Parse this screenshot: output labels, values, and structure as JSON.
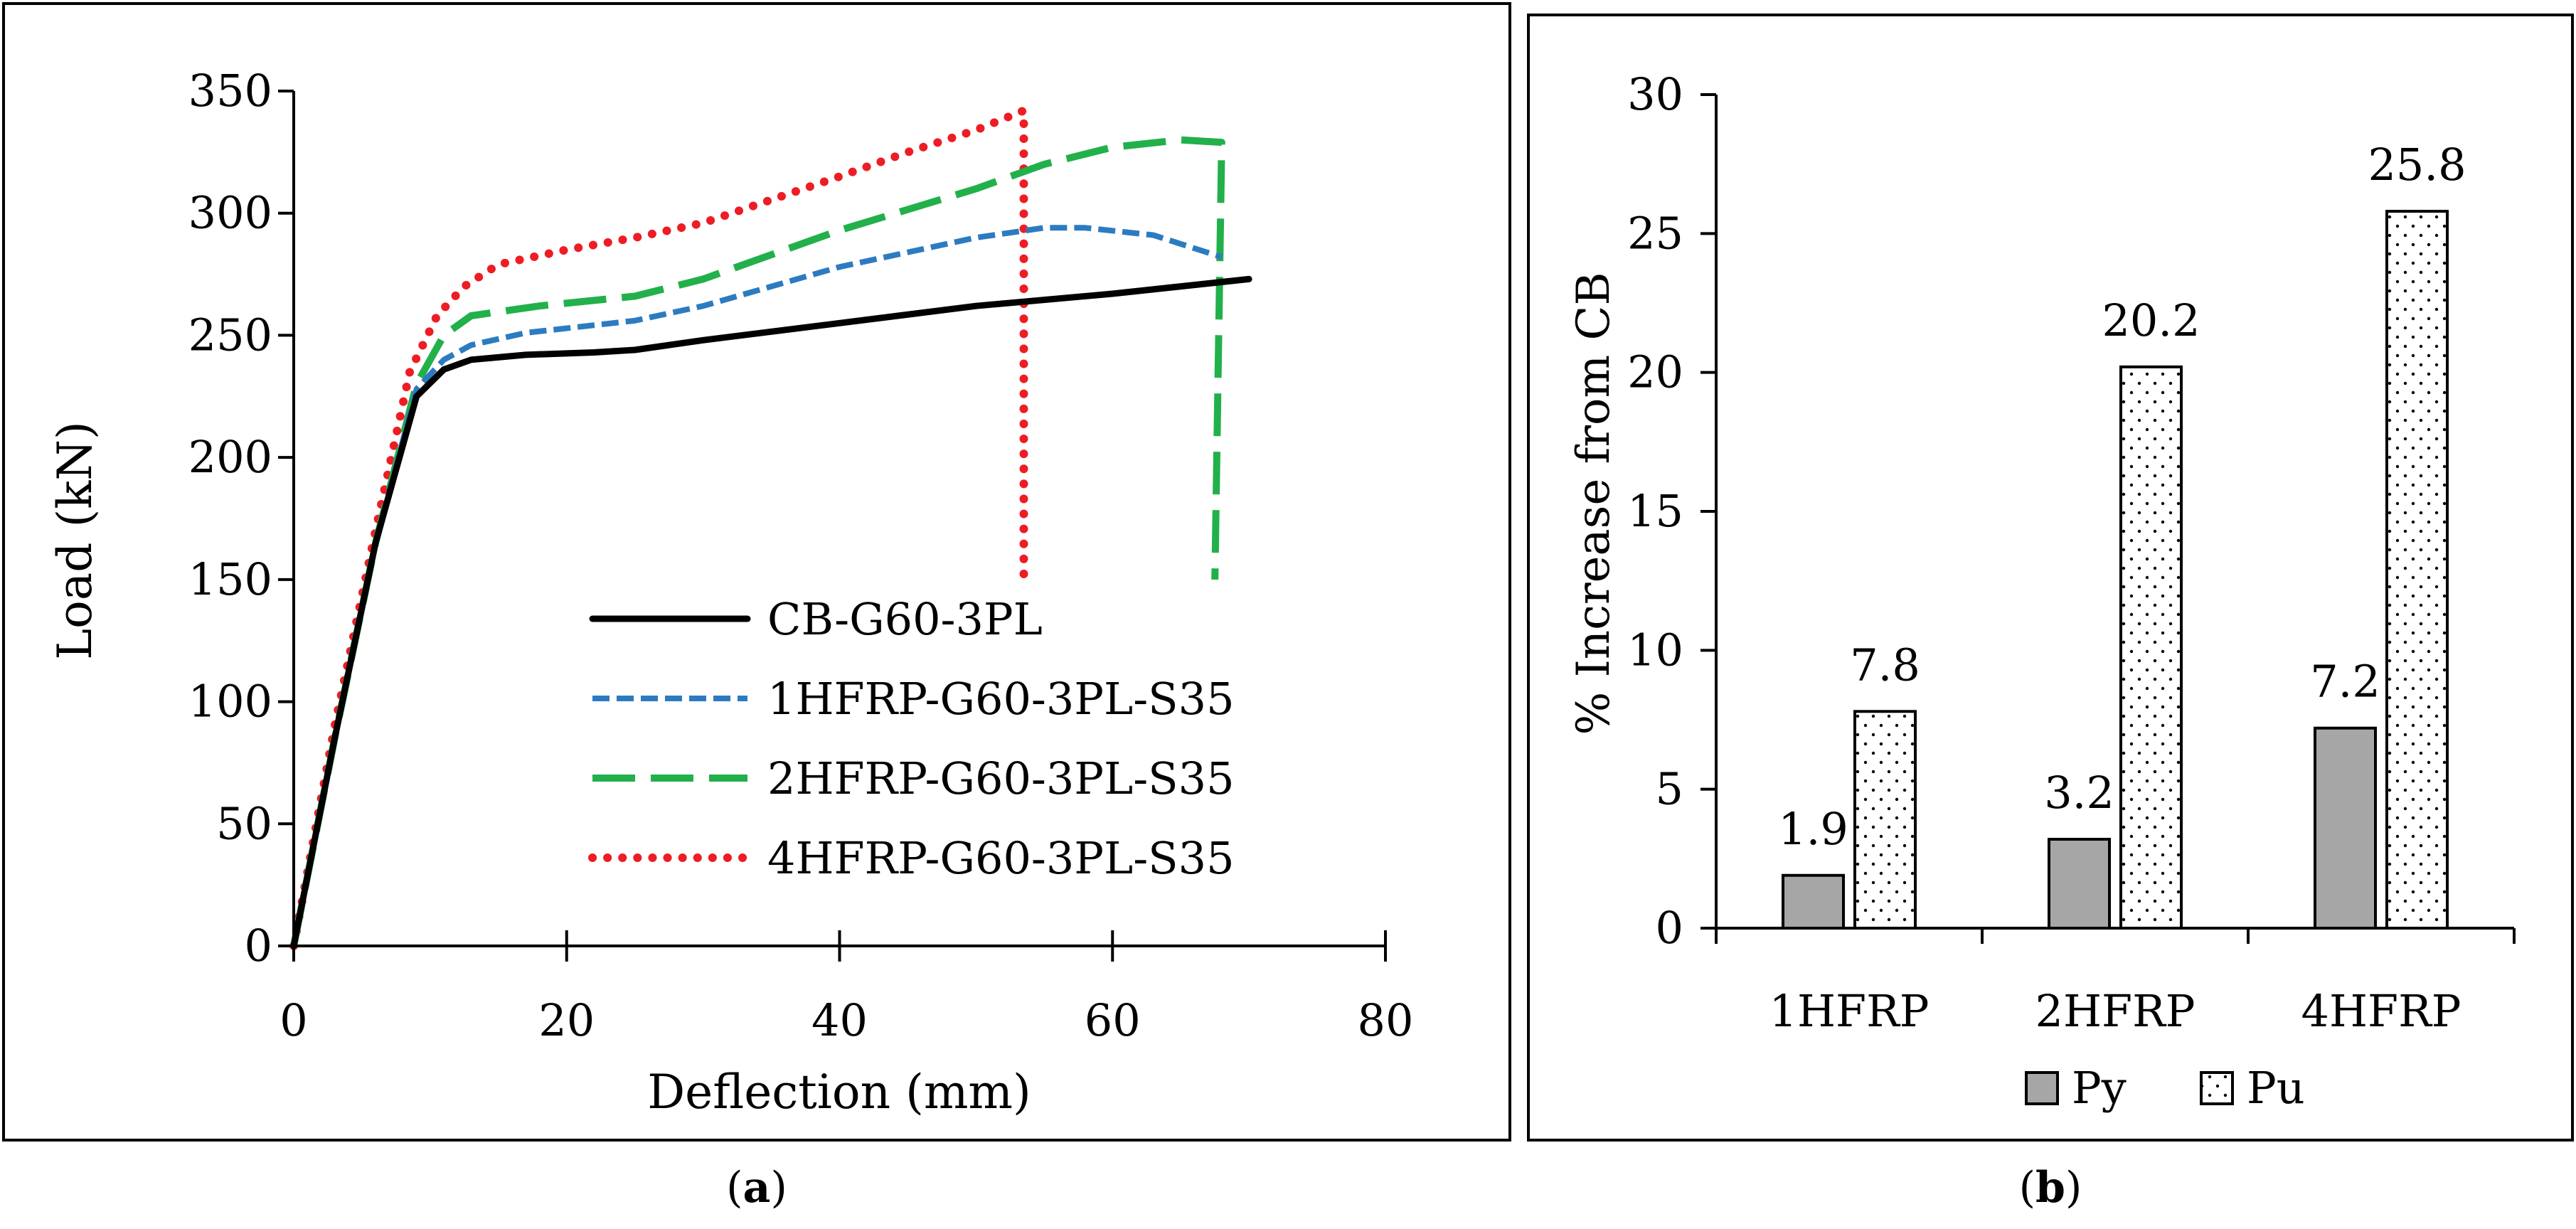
{
  "chart_data": [
    {
      "panel": "a",
      "type": "line",
      "caption_letter": "a",
      "caption_open": "(",
      "caption_close": ")",
      "xlabel": "Deflection (mm)",
      "ylabel": "Load (kN)",
      "xlim": [
        0,
        80
      ],
      "ylim": [
        0,
        350
      ],
      "xticks": [
        0,
        20,
        40,
        60,
        80
      ],
      "yticks": [
        0,
        50,
        100,
        150,
        200,
        250,
        300,
        350
      ],
      "grid": false,
      "legend_position": "lower-right",
      "series": [
        {
          "name": "CB-G60-3PL",
          "color": "#000000",
          "style": "solid",
          "points": [
            [
              0,
              0
            ],
            [
              3,
              85
            ],
            [
              6,
              165
            ],
            [
              9,
              225
            ],
            [
              11,
              236
            ],
            [
              13,
              240
            ],
            [
              17,
              242
            ],
            [
              22,
              243
            ],
            [
              25,
              244
            ],
            [
              30,
              248
            ],
            [
              40,
              255
            ],
            [
              50,
              262
            ],
            [
              60,
              267
            ],
            [
              70,
              273
            ]
          ]
        },
        {
          "name": "1HFRP-G60-3PL-S35",
          "color": "#2c7bc0",
          "style": "short-dash",
          "points": [
            [
              0,
              0
            ],
            [
              3,
              85
            ],
            [
              6,
              165
            ],
            [
              9,
              228
            ],
            [
              11,
              240
            ],
            [
              13,
              246
            ],
            [
              17,
              251
            ],
            [
              25,
              256
            ],
            [
              30,
              262
            ],
            [
              40,
              278
            ],
            [
              50,
              290
            ],
            [
              55,
              294
            ],
            [
              58,
              294
            ],
            [
              63,
              291
            ],
            [
              68,
              282
            ]
          ]
        },
        {
          "name": "2HFRP-G60-3PL-S35",
          "color": "#22b04b",
          "style": "long-dash",
          "points": [
            [
              0,
              0
            ],
            [
              3,
              85
            ],
            [
              6,
              165
            ],
            [
              9,
              230
            ],
            [
              11,
              250
            ],
            [
              13,
              258
            ],
            [
              18,
              262
            ],
            [
              25,
              266
            ],
            [
              30,
              273
            ],
            [
              40,
              293
            ],
            [
              50,
              310
            ],
            [
              55,
              320
            ],
            [
              60,
              327
            ],
            [
              65,
              330
            ],
            [
              68,
              329
            ],
            [
              67.5,
              150
            ]
          ]
        },
        {
          "name": "4HFRP-G60-3PL-S35",
          "color": "#ee1c24",
          "style": "dotted",
          "points": [
            [
              0,
              0
            ],
            [
              3,
              90
            ],
            [
              6,
              170
            ],
            [
              8.5,
              235
            ],
            [
              10.5,
              258
            ],
            [
              12.5,
              270
            ],
            [
              15,
              279
            ],
            [
              20,
              285
            ],
            [
              25,
              290
            ],
            [
              30,
              296
            ],
            [
              40,
              315
            ],
            [
              45,
              325
            ],
            [
              50,
              334
            ],
            [
              53.5,
              342
            ],
            [
              53.5,
              150
            ]
          ]
        }
      ]
    },
    {
      "panel": "b",
      "type": "bar",
      "caption_letter": "b",
      "caption_open": "(",
      "caption_close": ")",
      "ylabel": "% Increase from CB",
      "xlabel": "",
      "ylim": [
        0,
        30
      ],
      "yticks": [
        0,
        5,
        10,
        15,
        20,
        25,
        30
      ],
      "categories": [
        "1HFRP",
        "2HFRP",
        "4HFRP"
      ],
      "legend_position": "bottom",
      "series": [
        {
          "name": "Py",
          "fill": "#a6a6a6",
          "pattern": "solid",
          "values": [
            1.9,
            3.2,
            7.2
          ],
          "labels": [
            "1.9",
            "3.2",
            "7.2"
          ]
        },
        {
          "name": "Pu",
          "fill": "#ffffff",
          "pattern": "dots",
          "values": [
            7.8,
            20.2,
            25.8
          ],
          "labels": [
            "7.8",
            "20.2",
            "25.8"
          ]
        }
      ]
    }
  ]
}
